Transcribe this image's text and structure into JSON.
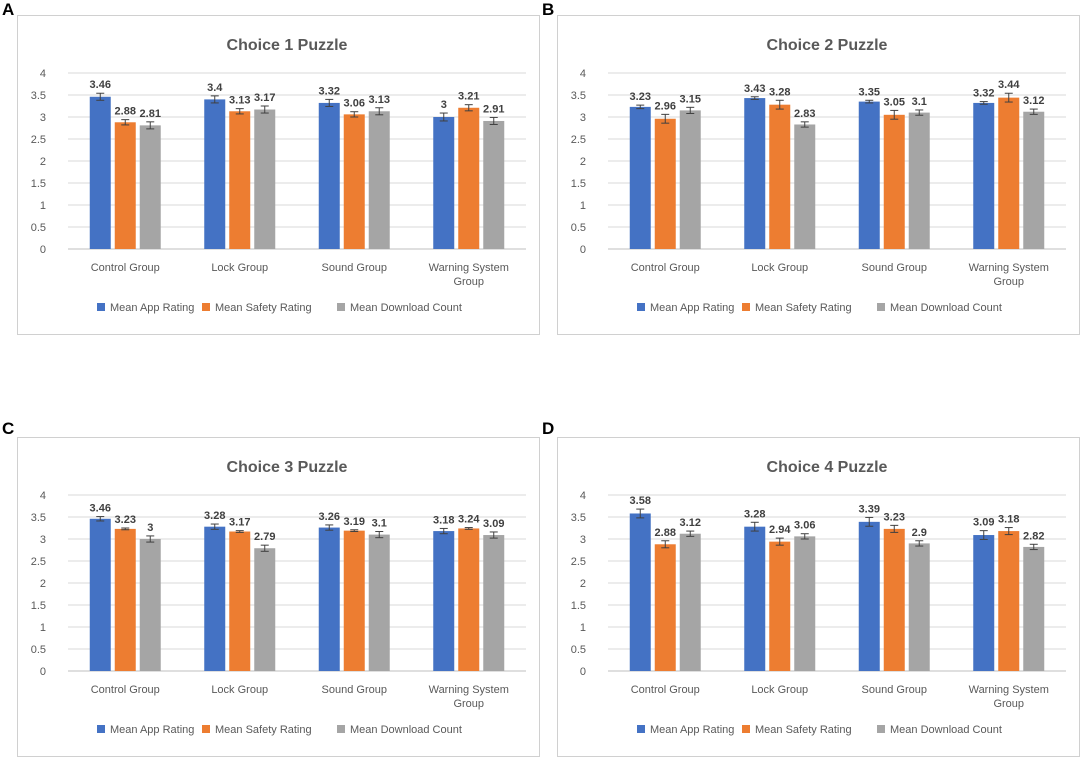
{
  "chart_data": [
    {
      "type": "bar",
      "panel_label": "A",
      "title": "Choice 1 Puzzle",
      "categories": [
        [
          "Control Group"
        ],
        [
          "Lock Group"
        ],
        [
          "Sound Group"
        ],
        [
          "Warning System",
          "Group"
        ]
      ],
      "series": [
        {
          "name": "Mean App Rating",
          "color": "#4472C4",
          "values": [
            3.46,
            3.4,
            3.32,
            3
          ],
          "errors": [
            0.08,
            0.08,
            0.08,
            0.09
          ]
        },
        {
          "name": "Mean Safety Rating",
          "color": "#ED7D31",
          "values": [
            2.88,
            3.13,
            3.06,
            3.21
          ],
          "errors": [
            0.06,
            0.06,
            0.06,
            0.07
          ]
        },
        {
          "name": "Mean Download Count",
          "color": "#A5A5A5",
          "values": [
            2.81,
            3.17,
            3.13,
            2.91
          ],
          "errors": [
            0.08,
            0.08,
            0.08,
            0.08
          ]
        }
      ],
      "ylim": [
        0,
        4
      ],
      "yticks": [
        "0",
        "0.5",
        "1",
        "1.5",
        "2",
        "2.5",
        "3",
        "3.5",
        "4"
      ],
      "gridlines": true,
      "legend": "bottom"
    },
    {
      "type": "bar",
      "panel_label": "B",
      "title": "Choice 2 Puzzle",
      "categories": [
        [
          "Control Group"
        ],
        [
          "Lock Group"
        ],
        [
          "Sound Group"
        ],
        [
          "Warning System",
          "Group"
        ]
      ],
      "series": [
        {
          "name": "Mean App Rating",
          "color": "#4472C4",
          "values": [
            3.23,
            3.43,
            3.35,
            3.32
          ],
          "errors": [
            0.04,
            0.03,
            0.03,
            0.03
          ]
        },
        {
          "name": "Mean Safety Rating",
          "color": "#ED7D31",
          "values": [
            2.96,
            3.28,
            3.05,
            3.44
          ],
          "errors": [
            0.1,
            0.1,
            0.1,
            0.1
          ]
        },
        {
          "name": "Mean Download Count",
          "color": "#A5A5A5",
          "values": [
            3.15,
            2.83,
            3.1,
            3.12
          ],
          "errors": [
            0.07,
            0.06,
            0.06,
            0.06
          ]
        }
      ],
      "ylim": [
        0,
        4
      ],
      "yticks": [
        "0",
        "0.5",
        "1",
        "1.5",
        "2",
        "2.5",
        "3",
        "3.5",
        "4"
      ],
      "gridlines": true,
      "legend": "bottom"
    },
    {
      "type": "bar",
      "panel_label": "C",
      "title": "Choice 3 Puzzle",
      "categories": [
        [
          "Control Group"
        ],
        [
          "Lock Group"
        ],
        [
          "Sound Group"
        ],
        [
          "Warning System",
          "Group"
        ]
      ],
      "series": [
        {
          "name": "Mean App Rating",
          "color": "#4472C4",
          "values": [
            3.46,
            3.28,
            3.26,
            3.18
          ],
          "errors": [
            0.05,
            0.06,
            0.06,
            0.06
          ]
        },
        {
          "name": "Mean Safety Rating",
          "color": "#ED7D31",
          "values": [
            3.23,
            3.17,
            3.19,
            3.24
          ],
          "errors": [
            0.02,
            0.02,
            0.02,
            0.02
          ]
        },
        {
          "name": "Mean Download Count",
          "color": "#A5A5A5",
          "values": [
            3,
            2.79,
            3.1,
            3.09
          ],
          "errors": [
            0.07,
            0.07,
            0.07,
            0.07
          ]
        }
      ],
      "ylim": [
        0,
        4
      ],
      "yticks": [
        "0",
        "0.5",
        "1",
        "1.5",
        "2",
        "2.5",
        "3",
        "3.5",
        "4"
      ],
      "gridlines": true,
      "legend": "bottom"
    },
    {
      "type": "bar",
      "panel_label": "D",
      "title": "Choice 4 Puzzle",
      "categories": [
        [
          "Control Group"
        ],
        [
          "Lock Group"
        ],
        [
          "Sound Group"
        ],
        [
          "Warning System",
          "Group"
        ]
      ],
      "series": [
        {
          "name": "Mean App Rating",
          "color": "#4472C4",
          "values": [
            3.58,
            3.28,
            3.39,
            3.09
          ],
          "errors": [
            0.1,
            0.1,
            0.1,
            0.1
          ]
        },
        {
          "name": "Mean Safety Rating",
          "color": "#ED7D31",
          "values": [
            2.88,
            2.94,
            3.23,
            3.18
          ],
          "errors": [
            0.08,
            0.08,
            0.08,
            0.08
          ]
        },
        {
          "name": "Mean Download Count",
          "color": "#A5A5A5",
          "values": [
            3.12,
            3.06,
            2.9,
            2.82
          ],
          "errors": [
            0.06,
            0.06,
            0.06,
            0.06
          ]
        }
      ],
      "ylim": [
        0,
        4
      ],
      "yticks": [
        "0",
        "0.5",
        "1",
        "1.5",
        "2",
        "2.5",
        "3",
        "3.5",
        "4"
      ],
      "gridlines": true,
      "legend": "bottom"
    }
  ]
}
